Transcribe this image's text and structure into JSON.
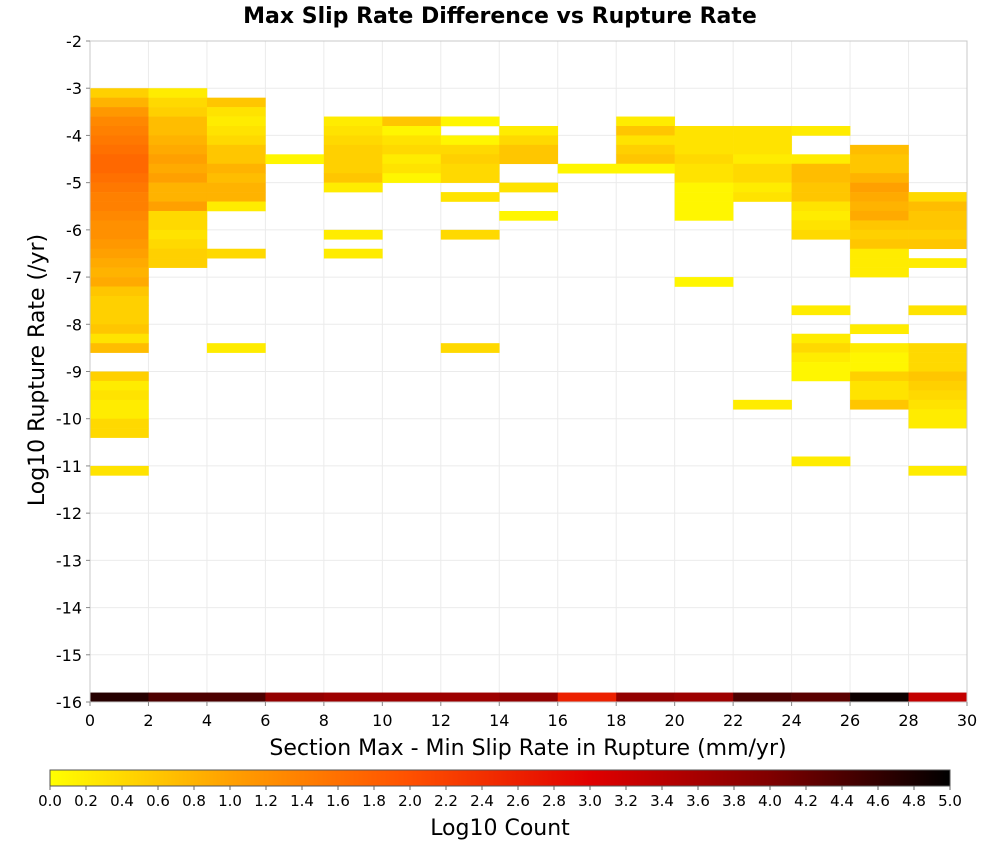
{
  "chart_data": {
    "type": "heatmap",
    "title": "Max Slip Rate Difference vs Rupture Rate",
    "xlabel": "Section Max - Min Slip Rate in Rupture (mm/yr)",
    "ylabel": "Log10 Rupture Rate (/yr)",
    "xlim": [
      0,
      30
    ],
    "ylim": [
      -16,
      -2
    ],
    "x_ticks": [
      0,
      2,
      4,
      6,
      8,
      10,
      12,
      14,
      16,
      18,
      20,
      22,
      24,
      26,
      28,
      30
    ],
    "y_ticks": [
      -2,
      -3,
      -4,
      -5,
      -6,
      -7,
      -8,
      -9,
      -10,
      -11,
      -12,
      -13,
      -14,
      -15,
      -16
    ],
    "grid": true,
    "colorbar": {
      "label": "Log10 Count",
      "range": [
        0.0,
        5.0
      ],
      "ticks": [
        "0.0",
        "0.2",
        "0.4",
        "0.6",
        "0.8",
        "1.0",
        "1.2",
        "1.4",
        "1.6",
        "1.8",
        "2.0",
        "2.2",
        "2.4",
        "2.6",
        "2.8",
        "3.0",
        "3.2",
        "3.4",
        "3.6",
        "3.8",
        "4.0",
        "4.2",
        "4.4",
        "4.6",
        "4.8",
        "5.0"
      ],
      "colors": [
        "#ffff00",
        "#ffa000",
        "#ff5000",
        "#e00000",
        "#800000",
        "#000000"
      ]
    },
    "bins": {
      "x_width": 2,
      "y_height": 0.2
    },
    "cells": [
      [
        1,
        -3.1,
        0.5
      ],
      [
        1,
        -3.3,
        0.8
      ],
      [
        1,
        -3.5,
        1.1
      ],
      [
        1,
        -3.7,
        1.3
      ],
      [
        1,
        -3.9,
        1.4
      ],
      [
        1,
        -4.1,
        1.5
      ],
      [
        1,
        -4.3,
        1.6
      ],
      [
        1,
        -4.5,
        1.7
      ],
      [
        1,
        -4.7,
        1.7
      ],
      [
        1,
        -4.9,
        1.6
      ],
      [
        1,
        -5.1,
        1.5
      ],
      [
        1,
        -5.3,
        1.4
      ],
      [
        1,
        -5.5,
        1.4
      ],
      [
        1,
        -5.7,
        1.3
      ],
      [
        1,
        -5.9,
        1.2
      ],
      [
        1,
        -6.1,
        1.2
      ],
      [
        1,
        -6.3,
        1.1
      ],
      [
        1,
        -6.5,
        1.0
      ],
      [
        1,
        -6.7,
        0.9
      ],
      [
        1,
        -6.9,
        0.8
      ],
      [
        1,
        -7.1,
        0.9
      ],
      [
        1,
        -7.3,
        0.6
      ],
      [
        1,
        -7.5,
        0.5
      ],
      [
        1,
        -7.7,
        0.5
      ],
      [
        1,
        -7.9,
        0.5
      ],
      [
        1,
        -8.1,
        0.6
      ],
      [
        1,
        -8.3,
        0.3
      ],
      [
        1,
        -8.5,
        0.7
      ],
      [
        1,
        -9.1,
        0.5
      ],
      [
        1,
        -9.3,
        0.2
      ],
      [
        1,
        -9.5,
        0.3
      ],
      [
        1,
        -9.7,
        0.2
      ],
      [
        1,
        -9.9,
        0.2
      ],
      [
        1,
        -10.1,
        0.4
      ],
      [
        1,
        -10.3,
        0.4
      ],
      [
        1,
        -11.1,
        0.3
      ],
      [
        3,
        -3.1,
        0.2
      ],
      [
        3,
        -3.3,
        0.4
      ],
      [
        3,
        -3.5,
        0.5
      ],
      [
        3,
        -3.7,
        0.7
      ],
      [
        3,
        -3.9,
        0.7
      ],
      [
        3,
        -4.1,
        0.8
      ],
      [
        3,
        -4.3,
        0.9
      ],
      [
        3,
        -4.5,
        1.0
      ],
      [
        3,
        -4.7,
        0.9
      ],
      [
        3,
        -4.9,
        1.0
      ],
      [
        3,
        -5.1,
        0.8
      ],
      [
        3,
        -5.3,
        0.8
      ],
      [
        3,
        -5.5,
        1.0
      ],
      [
        3,
        -5.7,
        0.4
      ],
      [
        3,
        -5.9,
        0.4
      ],
      [
        3,
        -6.1,
        0.3
      ],
      [
        3,
        -6.3,
        0.4
      ],
      [
        3,
        -6.5,
        0.5
      ],
      [
        3,
        -6.7,
        0.5
      ],
      [
        5,
        -3.3,
        0.6
      ],
      [
        5,
        -3.5,
        0.3
      ],
      [
        5,
        -3.7,
        0.2
      ],
      [
        5,
        -3.9,
        0.3
      ],
      [
        5,
        -4.1,
        0.4
      ],
      [
        5,
        -4.3,
        0.6
      ],
      [
        5,
        -4.5,
        0.6
      ],
      [
        5,
        -4.7,
        0.8
      ],
      [
        5,
        -4.9,
        0.7
      ],
      [
        5,
        -5.1,
        0.8
      ],
      [
        5,
        -5.3,
        0.8
      ],
      [
        5,
        -5.5,
        0.2
      ],
      [
        5,
        -6.5,
        0.4
      ],
      [
        5,
        -8.5,
        0.2
      ],
      [
        7,
        -4.5,
        0.1
      ],
      [
        9,
        -3.7,
        0.2
      ],
      [
        9,
        -3.9,
        0.3
      ],
      [
        9,
        -4.1,
        0.4
      ],
      [
        9,
        -4.3,
        0.5
      ],
      [
        9,
        -4.5,
        0.5
      ],
      [
        9,
        -4.7,
        0.5
      ],
      [
        9,
        -4.9,
        0.6
      ],
      [
        9,
        -5.1,
        0.2
      ],
      [
        9,
        -6.1,
        0.2
      ],
      [
        9,
        -6.5,
        0.2
      ],
      [
        11,
        -3.7,
        0.6
      ],
      [
        11,
        -3.9,
        0.1
      ],
      [
        11,
        -4.1,
        0.3
      ],
      [
        11,
        -4.3,
        0.4
      ],
      [
        11,
        -4.5,
        0.2
      ],
      [
        11,
        -4.7,
        0.3
      ],
      [
        11,
        -4.9,
        0.1
      ],
      [
        13,
        -3.7,
        0.1
      ],
      [
        13,
        -4.1,
        0.1
      ],
      [
        13,
        -4.3,
        0.4
      ],
      [
        13,
        -4.5,
        0.5
      ],
      [
        13,
        -4.7,
        0.4
      ],
      [
        13,
        -4.9,
        0.4
      ],
      [
        13,
        -5.3,
        0.3
      ],
      [
        13,
        -6.1,
        0.4
      ],
      [
        13,
        -8.5,
        0.4
      ],
      [
        15,
        -3.9,
        0.2
      ],
      [
        15,
        -4.1,
        0.4
      ],
      [
        15,
        -4.3,
        0.6
      ],
      [
        15,
        -4.5,
        0.6
      ],
      [
        15,
        -5.1,
        0.3
      ],
      [
        15,
        -5.7,
        0.1
      ],
      [
        17,
        -4.7,
        0.1
      ],
      [
        19,
        -3.7,
        0.2
      ],
      [
        19,
        -3.9,
        0.6
      ],
      [
        19,
        -4.1,
        0.3
      ],
      [
        19,
        -4.3,
        0.5
      ],
      [
        19,
        -4.5,
        0.6
      ],
      [
        19,
        -4.7,
        0.1
      ],
      [
        21,
        -3.9,
        0.3
      ],
      [
        21,
        -4.1,
        0.3
      ],
      [
        21,
        -4.3,
        0.3
      ],
      [
        21,
        -4.5,
        0.4
      ],
      [
        21,
        -4.7,
        0.3
      ],
      [
        21,
        -4.9,
        0.3
      ],
      [
        21,
        -5.1,
        0.1
      ],
      [
        21,
        -5.3,
        0.1
      ],
      [
        21,
        -5.5,
        0.1
      ],
      [
        21,
        -5.7,
        0.1
      ],
      [
        21,
        -7.1,
        0.1
      ],
      [
        23,
        -3.9,
        0.3
      ],
      [
        23,
        -4.1,
        0.3
      ],
      [
        23,
        -4.3,
        0.3
      ],
      [
        23,
        -4.5,
        0.2
      ],
      [
        23,
        -4.7,
        0.4
      ],
      [
        23,
        -4.9,
        0.4
      ],
      [
        23,
        -5.1,
        0.2
      ],
      [
        23,
        -5.3,
        0.3
      ],
      [
        23,
        -9.7,
        0.2
      ],
      [
        25,
        -3.9,
        0.2
      ],
      [
        25,
        -4.5,
        0.2
      ],
      [
        25,
        -4.7,
        0.7
      ],
      [
        25,
        -4.9,
        0.7
      ],
      [
        25,
        -5.1,
        0.6
      ],
      [
        25,
        -5.3,
        0.6
      ],
      [
        25,
        -5.5,
        0.3
      ],
      [
        25,
        -5.7,
        0.2
      ],
      [
        25,
        -5.9,
        0.3
      ],
      [
        25,
        -6.1,
        0.4
      ],
      [
        25,
        -7.7,
        0.2
      ],
      [
        25,
        -8.3,
        0.2
      ],
      [
        25,
        -8.5,
        0.4
      ],
      [
        25,
        -8.7,
        0.2
      ],
      [
        25,
        -8.9,
        0.1
      ],
      [
        25,
        -9.1,
        0.1
      ],
      [
        25,
        -10.9,
        0.2
      ],
      [
        27,
        -4.3,
        0.7
      ],
      [
        27,
        -4.5,
        0.6
      ],
      [
        27,
        -4.7,
        0.6
      ],
      [
        27,
        -4.9,
        0.8
      ],
      [
        27,
        -5.1,
        1.0
      ],
      [
        27,
        -5.3,
        0.9
      ],
      [
        27,
        -5.5,
        0.8
      ],
      [
        27,
        -5.7,
        0.9
      ],
      [
        27,
        -5.9,
        0.6
      ],
      [
        27,
        -6.1,
        0.5
      ],
      [
        27,
        -6.3,
        0.6
      ],
      [
        27,
        -6.5,
        0.2
      ],
      [
        27,
        -6.7,
        0.2
      ],
      [
        27,
        -6.9,
        0.2
      ],
      [
        27,
        -8.1,
        0.2
      ],
      [
        27,
        -8.5,
        0.2
      ],
      [
        27,
        -8.7,
        0.1
      ],
      [
        27,
        -8.9,
        0.1
      ],
      [
        27,
        -9.1,
        0.5
      ],
      [
        27,
        -9.3,
        0.3
      ],
      [
        27,
        -9.5,
        0.3
      ],
      [
        27,
        -9.7,
        0.6
      ],
      [
        29,
        -5.3,
        0.4
      ],
      [
        29,
        -5.5,
        0.7
      ],
      [
        29,
        -5.7,
        0.6
      ],
      [
        29,
        -5.9,
        0.6
      ],
      [
        29,
        -6.1,
        0.5
      ],
      [
        29,
        -6.3,
        0.6
      ],
      [
        29,
        -6.7,
        0.2
      ],
      [
        29,
        -7.7,
        0.3
      ],
      [
        29,
        -8.5,
        0.4
      ],
      [
        29,
        -8.7,
        0.4
      ],
      [
        29,
        -8.9,
        0.4
      ],
      [
        29,
        -9.1,
        0.6
      ],
      [
        29,
        -9.3,
        0.5
      ],
      [
        29,
        -9.5,
        0.4
      ],
      [
        29,
        -9.7,
        0.3
      ],
      [
        29,
        -9.9,
        0.2
      ],
      [
        29,
        -10.1,
        0.2
      ],
      [
        29,
        -11.1,
        0.2
      ]
    ],
    "bottom_row": {
      "y": -15.9,
      "values": [
        4.7,
        4.4,
        4.4,
        3.8,
        3.7,
        3.7,
        3.7,
        3.8,
        2.6,
        3.8,
        3.7,
        4.4,
        4.3,
        4.9,
        3.3
      ]
    }
  }
}
